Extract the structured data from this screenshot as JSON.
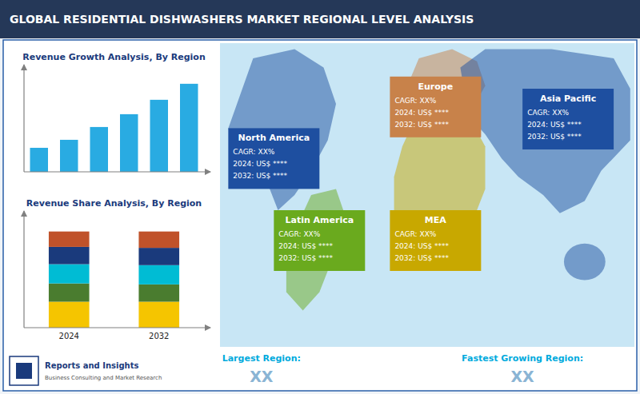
{
  "chart_data": [
    {
      "type": "bar",
      "title": "Revenue Growth Analysis, By Region",
      "categories": [
        null,
        null,
        null,
        null,
        null,
        null
      ],
      "values": [
        1.5,
        2.0,
        2.8,
        3.6,
        4.5,
        5.5
      ],
      "color": "#29abe2",
      "ylim": [
        0,
        6.49
      ],
      "tick_labels": false
    },
    {
      "type": "bar",
      "stacked": true,
      "title": "Revenue Share Analysis, By Region",
      "categories": [
        "2024",
        "2032"
      ],
      "series": [
        {
          "color": "#f5c500",
          "values": [
            0.27,
            0.27
          ]
        },
        {
          "color": "#4a7c2f",
          "values": [
            0.19,
            0.18
          ]
        },
        {
          "color": "#00bcd4",
          "values": [
            0.2,
            0.2
          ]
        },
        {
          "color": "#1a3a7c",
          "values": [
            0.18,
            0.18
          ]
        },
        {
          "color": "#c0522a",
          "values": [
            0.16,
            0.17
          ]
        }
      ],
      "ylim": [
        0,
        1.18
      ],
      "tick_labels": "x"
    },
    {
      "type": "map",
      "title": "GLOBAL RESIDENTIAL DISHWASHERS MARKET REGIONAL LEVEL ANALYSIS",
      "categories": [
        "North America",
        "Europe",
        "Asia Pacific",
        "Latin America",
        "MEA"
      ],
      "colors": [
        "#1e4fa0",
        "#c8824a",
        "#1e4fa0",
        "#6aaa1e",
        "#c8a800"
      ],
      "annotations": [
        "CAGR: XX%",
        "2024: US$ ****",
        "2032: US$ ****",
        "Largest Region:",
        "XX",
        "Fastest Growing Region:",
        "XX",
        "Reports and Insights",
        "Business Consulting and Market Research"
      ]
    }
  ]
}
